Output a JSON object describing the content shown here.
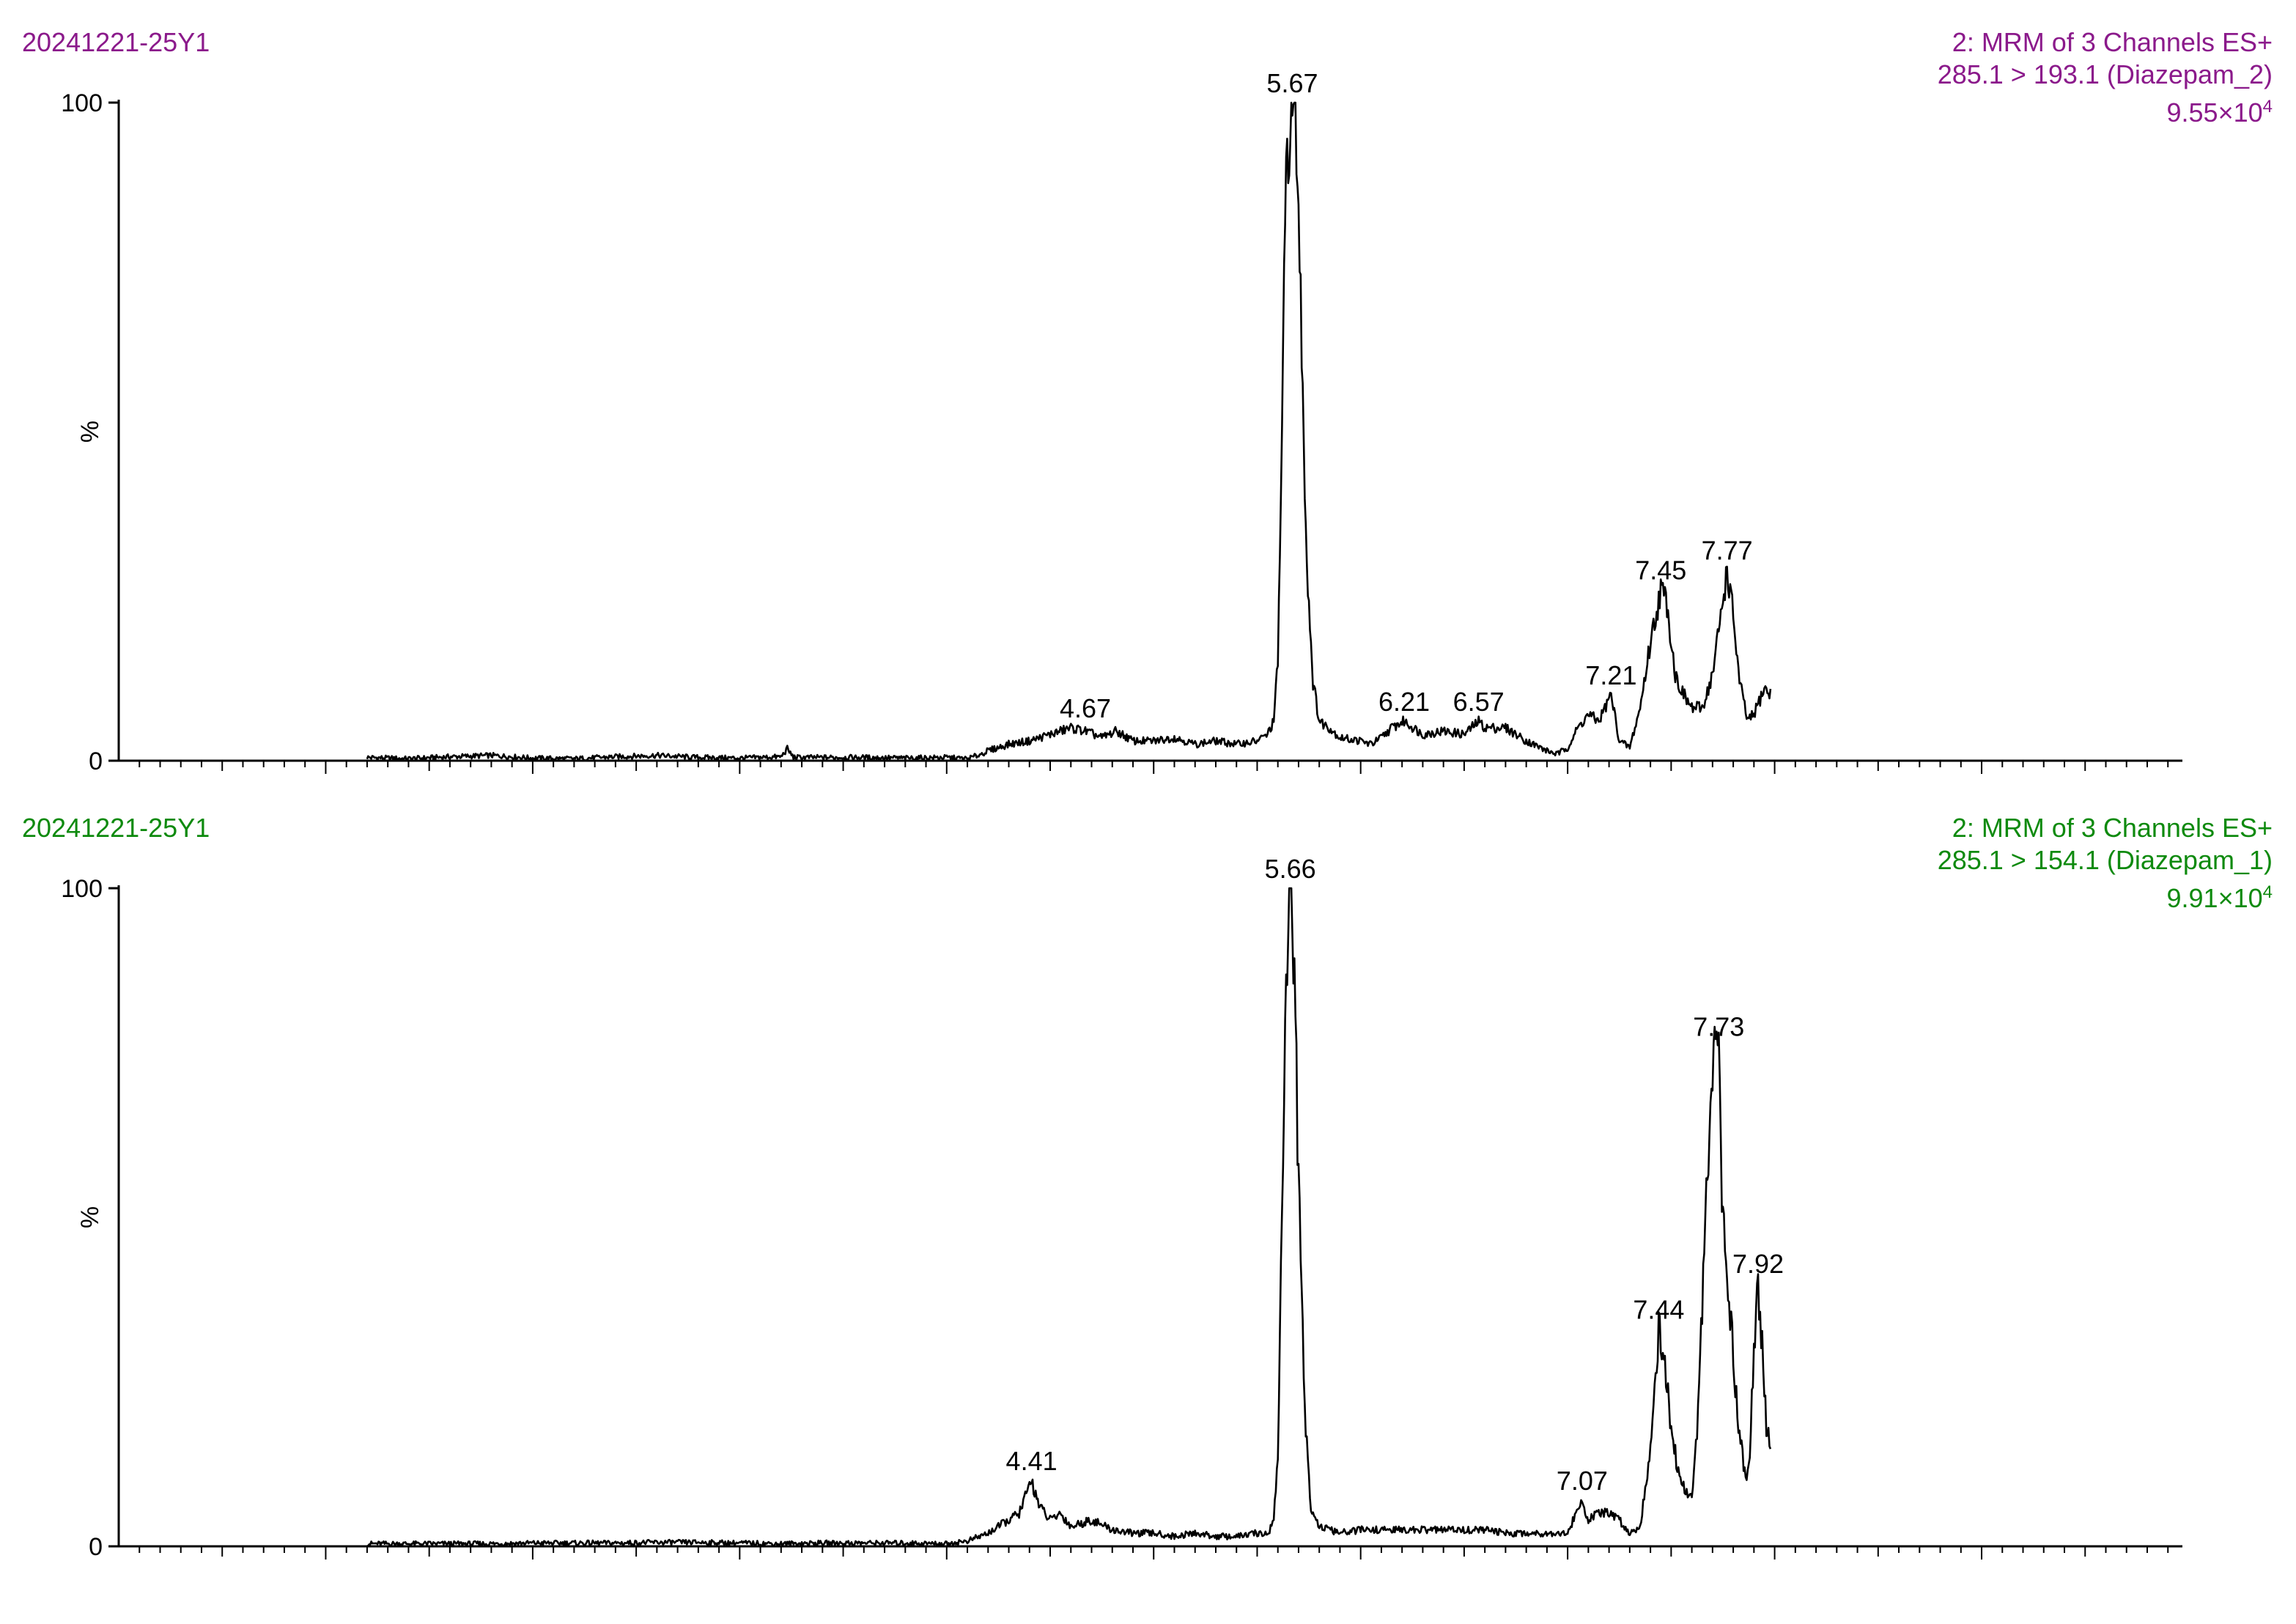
{
  "chart_data": [
    {
      "type": "line",
      "sample_name": "20241221-25Y1",
      "header_lines": [
        "2: MRM of 3 Channels ES+",
        "285.1 > 193.1 (Diazepam_2)"
      ],
      "intensity_mantissa": "9.55×10",
      "intensity_exponent": "4",
      "header_color": "#8b1a8b",
      "line_color": "#000000",
      "ylabel": "%",
      "xlim": [
        0.0,
        9.97
      ],
      "ylim": [
        0,
        100
      ],
      "y_ticks": [
        "100",
        "0"
      ],
      "x_ticks": [
        "1.00",
        "2.00",
        "3.00",
        "4.00",
        "5.00",
        "6.00",
        "7.00",
        "8.00",
        "9.00"
      ],
      "grid": false,
      "peak_labels": [
        {
          "label": "4.67",
          "x": 4.67,
          "y": 5
        },
        {
          "label": "5.67",
          "x": 5.67,
          "y": 100
        },
        {
          "label": "6.21",
          "x": 6.21,
          "y": 6
        },
        {
          "label": "6.57",
          "x": 6.57,
          "y": 6
        },
        {
          "label": "7.21",
          "x": 7.21,
          "y": 10
        },
        {
          "label": "7.45",
          "x": 7.45,
          "y": 26
        },
        {
          "label": "7.77",
          "x": 7.77,
          "y": 29
        }
      ],
      "x": [
        1.2,
        1.4,
        1.6,
        1.8,
        2.0,
        2.2,
        2.4,
        2.6,
        2.8,
        3.0,
        3.2,
        3.23,
        3.26,
        3.4,
        3.6,
        3.8,
        4.0,
        4.1,
        4.15,
        4.2,
        4.3,
        4.4,
        4.5,
        4.6,
        4.67,
        4.75,
        4.82,
        4.9,
        5.0,
        5.1,
        5.2,
        5.3,
        5.4,
        5.5,
        5.55,
        5.58,
        5.6,
        5.62,
        5.64,
        5.66,
        5.67,
        5.69,
        5.71,
        5.74,
        5.77,
        5.8,
        5.85,
        5.9,
        6.0,
        6.05,
        6.1,
        6.15,
        6.21,
        6.3,
        6.4,
        6.5,
        6.57,
        6.6,
        6.7,
        6.8,
        6.9,
        6.95,
        7.0,
        7.05,
        7.1,
        7.15,
        7.21,
        7.25,
        7.3,
        7.35,
        7.4,
        7.45,
        7.48,
        7.52,
        7.56,
        7.6,
        7.65,
        7.7,
        7.74,
        7.77,
        7.8,
        7.83,
        7.87,
        7.9,
        7.95,
        7.98
      ],
      "y": [
        0.5,
        0.3,
        0.6,
        0.8,
        0.4,
        0.3,
        0.6,
        0.8,
        0.5,
        0.4,
        0.6,
        1.8,
        0.5,
        0.5,
        0.5,
        0.4,
        0.5,
        0.3,
        0.8,
        1.5,
        2.5,
        3,
        4,
        5,
        4.5,
        3.5,
        4.5,
        3,
        3,
        3.5,
        2.5,
        3,
        2.5,
        3,
        4,
        6,
        15,
        50,
        90,
        99,
        100,
        95,
        70,
        30,
        12,
        6,
        5,
        3.5,
        3,
        2.5,
        3.5,
        5,
        6,
        4,
        4.5,
        4,
        6,
        5,
        5,
        3,
        1.5,
        1,
        2,
        5,
        7,
        6,
        10,
        3,
        2,
        8,
        18,
        26,
        24,
        13,
        10,
        8,
        8,
        13,
        22,
        29,
        22,
        12,
        6,
        7,
        11,
        10
      ]
    },
    {
      "type": "line",
      "sample_name": "20241221-25Y1",
      "header_lines": [
        "2: MRM of 3 Channels ES+",
        "285.1 > 154.1 (Diazepam_1)"
      ],
      "intensity_mantissa": "9.91×10",
      "intensity_exponent": "4",
      "header_color": "#0e8a0e",
      "line_color": "#000000",
      "ylabel": "%",
      "xlim": [
        0.0,
        9.97
      ],
      "ylim": [
        0,
        100
      ],
      "y_ticks": [
        "100",
        "0"
      ],
      "x_ticks": [
        "1.00",
        "2.00",
        "3.00",
        "4.00",
        "5.00",
        "6.00",
        "7.00",
        "8.00",
        "9.00"
      ],
      "grid": false,
      "peak_labels": [
        {
          "label": "4.41",
          "x": 4.41,
          "y": 10
        },
        {
          "label": "5.66",
          "x": 5.66,
          "y": 100
        },
        {
          "label": "7.07",
          "x": 7.07,
          "y": 7
        },
        {
          "label": "7.44",
          "x": 7.44,
          "y": 33
        },
        {
          "label": "7.73",
          "x": 7.73,
          "y": 76
        },
        {
          "label": "7.92",
          "x": 7.92,
          "y": 40
        }
      ],
      "x": [
        1.2,
        1.4,
        1.6,
        1.8,
        2.0,
        2.2,
        2.4,
        2.6,
        2.8,
        3.0,
        3.2,
        3.4,
        3.6,
        3.8,
        4.0,
        4.1,
        4.2,
        4.3,
        4.35,
        4.41,
        4.45,
        4.5,
        4.55,
        4.6,
        4.7,
        4.8,
        4.9,
        5.0,
        5.1,
        5.2,
        5.3,
        5.4,
        5.5,
        5.55,
        5.58,
        5.6,
        5.62,
        5.64,
        5.66,
        5.68,
        5.7,
        5.73,
        5.76,
        5.8,
        5.85,
        5.9,
        6.0,
        6.1,
        6.2,
        6.3,
        6.4,
        6.5,
        6.6,
        6.7,
        6.8,
        6.9,
        7.0,
        7.07,
        7.1,
        7.15,
        7.2,
        7.25,
        7.3,
        7.35,
        7.4,
        7.44,
        7.47,
        7.5,
        7.53,
        7.56,
        7.6,
        7.63,
        7.66,
        7.69,
        7.71,
        7.73,
        7.75,
        7.78,
        7.82,
        7.86,
        7.88,
        7.9,
        7.92,
        7.94,
        7.96,
        7.98
      ],
      "y": [
        0.4,
        0.4,
        0.4,
        0.4,
        0.5,
        0.5,
        0.5,
        0.6,
        0.6,
        0.5,
        0.4,
        0.5,
        0.5,
        0.5,
        0.4,
        0.8,
        2,
        4,
        5,
        10,
        6,
        4,
        5,
        3,
        4,
        2.5,
        2,
        2,
        1.5,
        2,
        1.5,
        1.5,
        2,
        1.8,
        4,
        14,
        50,
        88,
        100,
        88,
        55,
        20,
        6,
        3,
        2.5,
        2,
        2.5,
        2.5,
        2.5,
        2.5,
        2.5,
        2.5,
        2.5,
        2,
        2,
        2,
        2,
        7,
        4,
        5,
        5,
        4,
        2,
        3,
        15,
        33,
        28,
        18,
        12,
        9,
        7,
        20,
        45,
        65,
        76,
        72,
        50,
        38,
        20,
        10,
        15,
        30,
        40,
        30,
        18,
        16
      ]
    }
  ]
}
